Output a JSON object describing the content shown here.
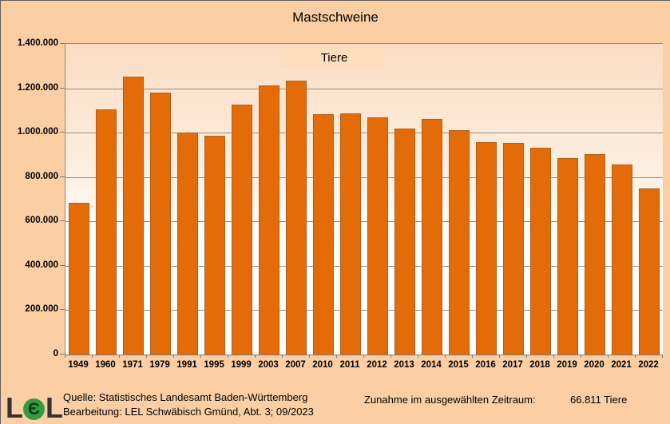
{
  "title": "Mastschweine",
  "legend": {
    "label": "Tiere"
  },
  "colors": {
    "background": "#FBCFA3",
    "plot_gradient_top": "#FADCC3",
    "plot_gradient_bottom": "#FFFFFF",
    "bar": "#E36C09",
    "grid": "#8F8F8F",
    "legend_background": "#FCDDBC",
    "logo_green": "#2F9E41"
  },
  "y_axis": {
    "tick_labels": [
      "1.400.000",
      "1.200.000",
      "1.000.000",
      "800.000",
      "600.000",
      "400.000",
      "200.000",
      "0"
    ]
  },
  "logo": {
    "letters": [
      "L",
      "Є",
      "L"
    ],
    "name": "LEL"
  },
  "footer": {
    "source_line": "Quelle: Statistisches Landesamt Baden-Württemberg",
    "processing_line": "Bearbeitung: LEL Schwäbisch Gmünd, Abt. 3; 09/2023",
    "summary_label": "Zunahme im ausgewählten Zeitraum:",
    "summary_value": "66.811 Tiere"
  },
  "chart_data": {
    "type": "bar",
    "title": "Mastschweine",
    "legend": [
      "Tiere"
    ],
    "legend_position": "top-center",
    "grid": true,
    "ylim": [
      0,
      1400000
    ],
    "ytick_step": 200000,
    "categories": [
      "1949",
      "1960",
      "1971",
      "1979",
      "1991",
      "1995",
      "1999",
      "2003",
      "2007",
      "2010",
      "2011",
      "2012",
      "2013",
      "2014",
      "2015",
      "2016",
      "2017",
      "2018",
      "2019",
      "2020",
      "2021",
      "2022"
    ],
    "values": [
      683000,
      1105000,
      1253000,
      1180000,
      1001000,
      988000,
      1127000,
      1212000,
      1233000,
      1084000,
      1086000,
      1068000,
      1018000,
      1061000,
      1011000,
      958000,
      954000,
      933000,
      884000,
      902000,
      856000,
      749811
    ],
    "annotation": {
      "label": "Zunahme im ausgewählten Zeitraum:",
      "value": "66.811 Tiere"
    }
  }
}
